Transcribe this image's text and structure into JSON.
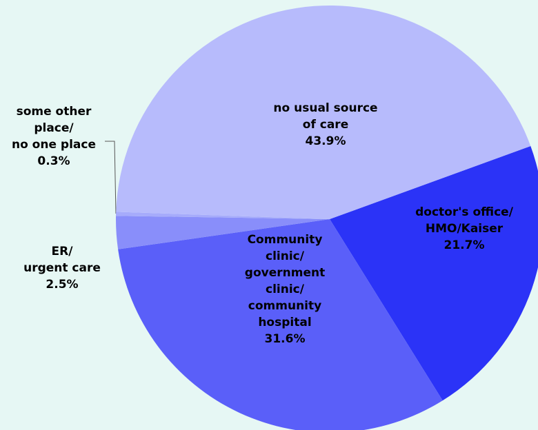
{
  "chart_data": {
    "type": "pie",
    "categories": [
      "doctor's office/\nHMO/Kaiser",
      "Community\nclinic/\ngovernment\nclinic/\ncommunity\nhospital",
      "ER/\nurgent care",
      "some other\nplace/\nno one place",
      "no usual source\nof care"
    ],
    "values": [
      21.7,
      31.6,
      2.5,
      0.3,
      43.9
    ],
    "value_labels": [
      "21.7%",
      "31.6%",
      "2.5%",
      "0.3%",
      "43.9%"
    ],
    "colors": [
      "#2b33f7",
      "#5a5ff9",
      "#898efa",
      "#a6abfb",
      "#b7bbfc"
    ]
  }
}
